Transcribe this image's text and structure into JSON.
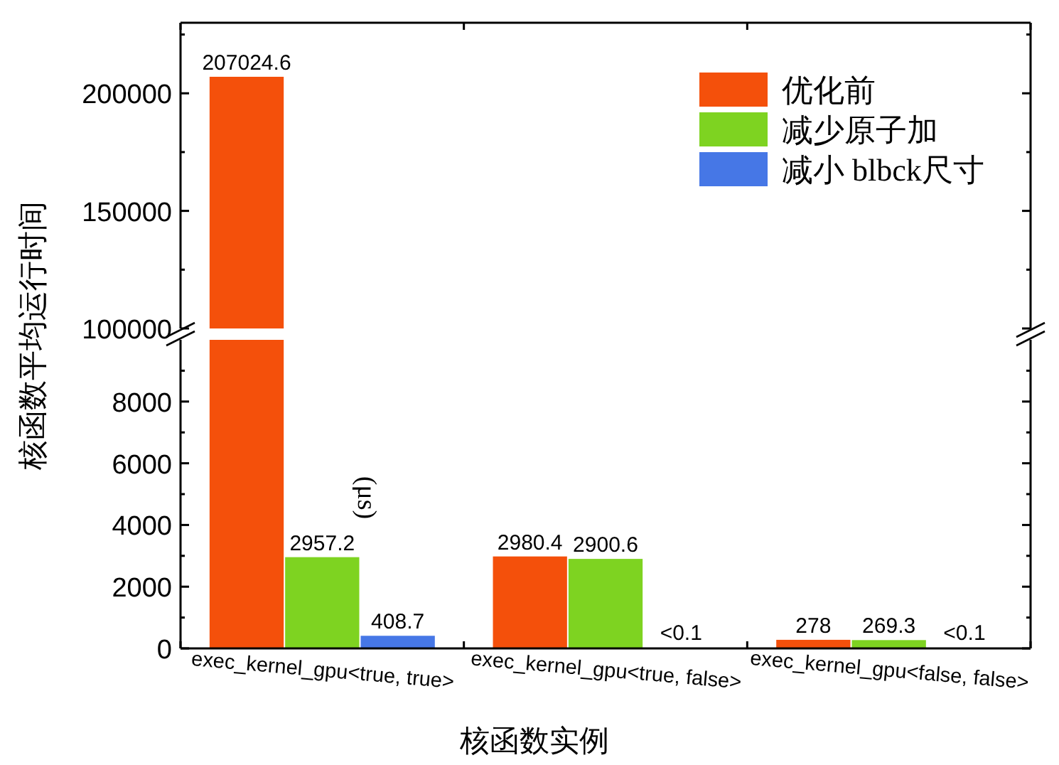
{
  "chart_data": [
    {
      "type": "bar",
      "ylabel": "核函数平均运行时间",
      "categories": [
        null,
        null,
        null
      ],
      "ylim": [
        100000,
        230000
      ],
      "yticks": [
        100000,
        150000,
        200000
      ],
      "legend": "top right",
      "series": [
        {
          "name": "优化前",
          "color": "#f4500b",
          "values": [
            207024.6,
            null,
            null
          ],
          "value_labels": [
            "207024.6",
            null,
            null
          ]
        },
        {
          "name": "减少原子加",
          "color": "#7ed321",
          "values": [
            null,
            null,
            null
          ]
        },
        {
          "name": "减小 blbck尺寸",
          "color": "#4677e6",
          "values": [
            null,
            null,
            null
          ]
        }
      ]
    },
    {
      "type": "bar",
      "xlabel": "核函数实例",
      "categories": [
        "exec_kernel_gpu<true, true>",
        "exec_kernel_gpu<true, false>",
        "exec_kernel_gpu<false, false>"
      ],
      "ylim": [
        0,
        10000
      ],
      "yticks": [
        0,
        2000,
        4000,
        6000,
        8000
      ],
      "annotations": [
        "(μs)",
        {
          "text": "<0.1",
          "x": "exec_kernel_gpu<true, false>",
          "y": 0
        },
        {
          "text": "<0.1",
          "x": "exec_kernel_gpu<false, false>",
          "y": 0
        }
      ],
      "series": [
        {
          "color": "#f4500b",
          "values": [
            null,
            2980.4,
            278
          ],
          "value_labels": [
            null,
            "2980.4",
            "278"
          ]
        },
        {
          "color": "#7ed321",
          "values": [
            2957.2,
            2900.6,
            269.3
          ],
          "value_labels": [
            "2957.2",
            "2900.6",
            "269.3"
          ]
        },
        {
          "color": "#4677e6",
          "values": [
            408.7,
            null,
            null
          ],
          "value_labels": [
            "408.7",
            null,
            null
          ]
        }
      ]
    }
  ]
}
